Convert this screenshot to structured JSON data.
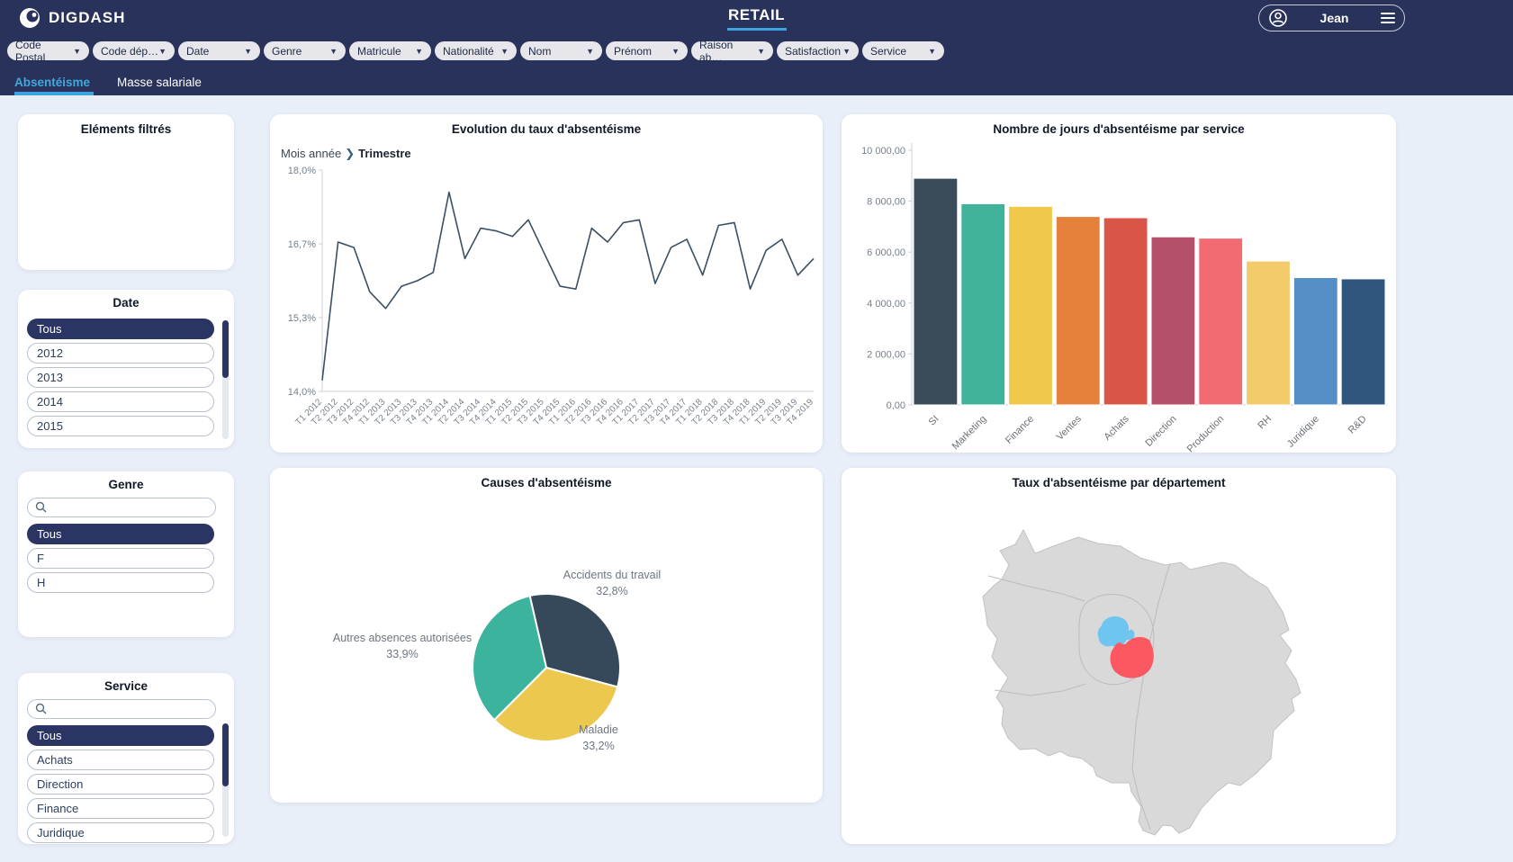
{
  "header": {
    "brand": "DIGDASH",
    "title": "RETAIL",
    "user": "Jean"
  },
  "filters": [
    "Code Postal",
    "Code dép…",
    "Date",
    "Genre",
    "Matricule",
    "Nationalité",
    "Nom",
    "Prénom",
    "Raison ab…",
    "Satisfaction",
    "Service"
  ],
  "tabs": [
    {
      "label": "Absentéisme",
      "active": true
    },
    {
      "label": "Masse salariale",
      "active": false
    }
  ],
  "sidebar": {
    "filtered_panel": {
      "title": "Eléments filtrés"
    },
    "date_panel": {
      "title": "Date",
      "selected": "Tous",
      "items": [
        "Tous",
        "2012",
        "2013",
        "2014",
        "2015"
      ]
    },
    "genre_panel": {
      "title": "Genre",
      "search_placeholder": "",
      "selected": "Tous",
      "items": [
        "Tous",
        "F",
        "H"
      ]
    },
    "service_panel": {
      "title": "Service",
      "search_placeholder": "",
      "selected": "Tous",
      "items": [
        "Tous",
        "Achats",
        "Direction",
        "Finance",
        "Juridique"
      ]
    }
  },
  "chart_data": [
    {
      "type": "line",
      "title": "Evolution du taux d'absentéisme",
      "breadcrumb": [
        "Mois année",
        "Trimestre"
      ],
      "x": [
        "T1 2012",
        "T2 2012",
        "T3 2012",
        "T4 2012",
        "T1 2013",
        "T2 2013",
        "T3 2013",
        "T4 2013",
        "T1 2014",
        "T2 2014",
        "T3 2014",
        "T4 2014",
        "T1 2015",
        "T2 2015",
        "T3 2015",
        "T4 2015",
        "T1 2016",
        "T2 2016",
        "T3 2016",
        "T4 2016",
        "T1 2017",
        "T2 2017",
        "T3 2017",
        "T4 2017",
        "T1 2018",
        "T2 2018",
        "T3 2018",
        "T4 2018",
        "T1 2019",
        "T2 2019",
        "T3 2019",
        "T4 2019"
      ],
      "values": [
        14.2,
        16.7,
        16.6,
        15.8,
        15.5,
        15.9,
        16.0,
        16.15,
        17.6,
        16.4,
        16.95,
        16.9,
        16.8,
        17.1,
        16.5,
        15.9,
        15.85,
        16.95,
        16.7,
        17.05,
        17.1,
        15.95,
        16.6,
        16.75,
        16.1,
        17.0,
        17.05,
        15.85,
        16.55,
        16.75,
        16.1,
        16.4
      ],
      "ylim": [
        14.0,
        18.0
      ],
      "yticks": [
        "18,0%",
        "16,7%",
        "15,3%",
        "14,0%"
      ],
      "line_color": "#3a5064"
    },
    {
      "type": "bar",
      "title": "Nombre de jours d'absentéisme par service",
      "categories": [
        "SI",
        "Marketing",
        "Finance",
        "Ventes",
        "Achats",
        "Direction",
        "Production",
        "RH",
        "Juridique",
        "R&D"
      ],
      "values": [
        8900,
        7900,
        7800,
        7400,
        7350,
        6600,
        6550,
        5650,
        5000,
        4950
      ],
      "colors": [
        "#3a4b59",
        "#41b39a",
        "#f0c84b",
        "#e5813b",
        "#d95547",
        "#b5506b",
        "#f26b72",
        "#f3cb6b",
        "#568fc6",
        "#31567e"
      ],
      "ylim": [
        0,
        10000
      ],
      "yticks": [
        "10 000,00",
        "8 000,00",
        "6 000,00",
        "4 000,00",
        "2 000,00",
        "0,00"
      ]
    },
    {
      "type": "pie",
      "title": "Causes d'absentéisme",
      "start_angle_deg": -13,
      "slices": [
        {
          "label": "Accidents du travail",
          "pct": "32,8%",
          "value": 32.8,
          "color": "#35495a"
        },
        {
          "label": "Maladie",
          "pct": "33,2%",
          "value": 33.2,
          "color": "#edc84e"
        },
        {
          "label": "Autres absences autorisées",
          "pct": "33,9%",
          "value": 33.9,
          "color": "#3cb39c"
        }
      ]
    },
    {
      "type": "map",
      "title": "Taux d'absentéisme par département",
      "region_fill": "#d9d9d9",
      "region_stroke": "#c2c2c2",
      "inner_stroke": "#bcbcbc",
      "highlights": [
        {
          "name": "dept-blue",
          "color": "#6ec6f0"
        },
        {
          "name": "dept-red",
          "color": "#fb5862"
        }
      ]
    }
  ]
}
